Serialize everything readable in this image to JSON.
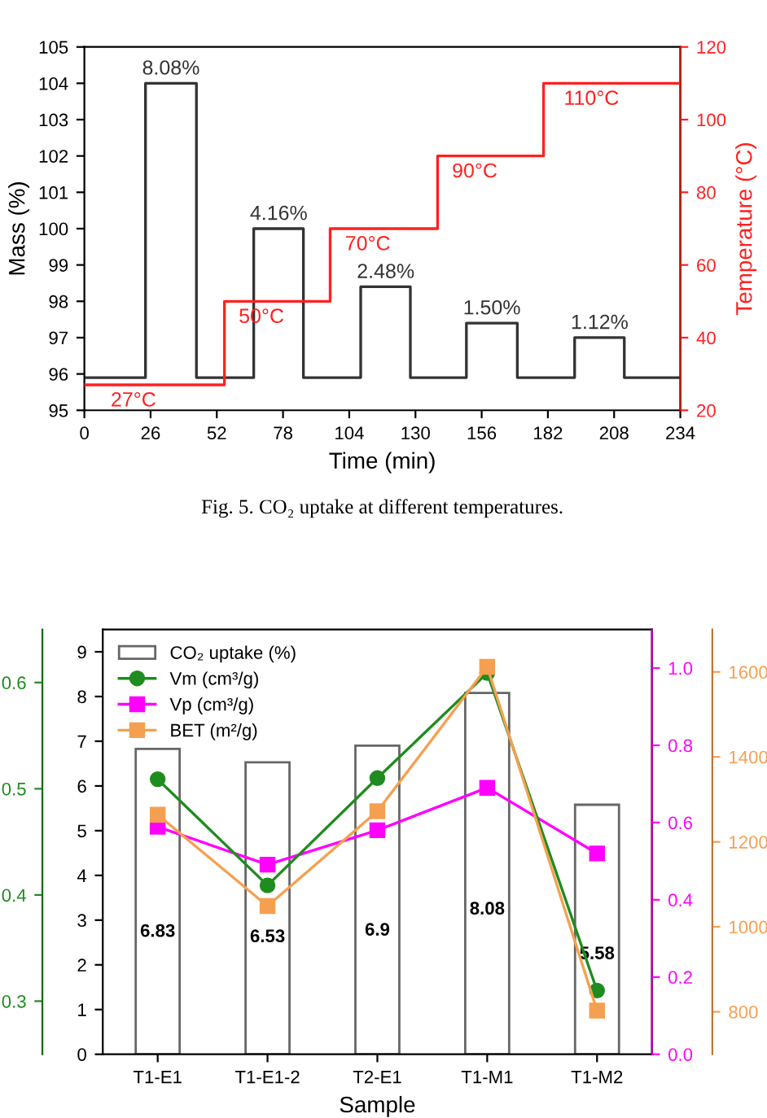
{
  "chart_data": [
    {
      "type": "line",
      "xlabel": "Time (min)",
      "ylabel": "Mass (%)",
      "y2label": "Temperature (°C)",
      "xlim": [
        0,
        234
      ],
      "xticks": [
        0,
        26,
        52,
        78,
        104,
        130,
        156,
        182,
        208,
        234
      ],
      "ylim": [
        95,
        105
      ],
      "yticks": [
        95,
        96,
        97,
        98,
        99,
        100,
        101,
        102,
        103,
        104,
        105
      ],
      "y2lim": [
        20,
        120
      ],
      "y2ticks": [
        20,
        40,
        60,
        80,
        100,
        120
      ],
      "annotations": [
        {
          "text": "8.08%",
          "x": 34,
          "y": 104
        },
        {
          "text": "4.16%",
          "x": 76.3,
          "y": 100.0
        },
        {
          "text": "2.48%",
          "x": 118.3,
          "y": 98.4
        },
        {
          "text": "1.50%",
          "x": 160,
          "y": 97.4
        },
        {
          "text": "1.12%",
          "x": 202.3,
          "y": 97.0
        },
        "Fig. 5. CO₂ uptake at different temperatures."
      ],
      "series": [
        {
          "color": "#333333",
          "x": [
            0,
            24,
            24,
            44,
            44,
            66.5,
            66.5,
            86,
            86,
            108.5,
            108.5,
            128,
            128,
            150,
            150,
            170,
            170,
            192.5,
            192.5,
            212,
            212,
            234
          ],
          "values": [
            95.9,
            95.9,
            104,
            104,
            95.9,
            95.9,
            100.0,
            100.0,
            95.9,
            95.9,
            98.4,
            98.4,
            95.9,
            95.9,
            97.4,
            97.4,
            95.9,
            95.9,
            97.0,
            97.0,
            95.9,
            95.9
          ]
        },
        {
          "type": "step",
          "axis": "y2",
          "color": "#ff2020",
          "x": [
            0,
            55,
            96.5,
            138.7,
            180.3,
            234
          ],
          "values": [
            27,
            50,
            70,
            90,
            110,
            110
          ],
          "value_labels": [
            "27°C",
            "50°C",
            "70°C",
            "90°C",
            "110°C",
            null
          ]
        }
      ]
    },
    {
      "type": "bar",
      "xlabel": "Sample",
      "categories": [
        "T1-E1",
        "T1-E1-2",
        "T2-E1",
        "T1-M1",
        "T1-M2"
      ],
      "ylim": [
        0,
        9.5
      ],
      "yticks": [
        0,
        1,
        2,
        3,
        4,
        5,
        6,
        7,
        8,
        9
      ],
      "y2lim": [
        0,
        1.1
      ],
      "y2ticks": [
        {
          "value": 0,
          "label": "0.0"
        },
        0.2,
        0.4,
        0.6,
        0.8,
        {
          "value": 1,
          "label": "1.0"
        }
      ],
      "y3lim": [
        0.25,
        0.65
      ],
      "y3ticks": [
        0.3,
        0.4,
        0.5,
        0.6
      ],
      "legend": "top left",
      "series": [
        {
          "type": "bar",
          "name": "CO₂ uptake (%)",
          "color": "#ffffff",
          "values": [
            6.83,
            6.53,
            6.9,
            8.08,
            5.58
          ],
          "value_labels": [
            "6.83",
            "6.53",
            "6.9",
            "8.08",
            "5.58"
          ]
        },
        {
          "type": "line",
          "name": "Vm (cm³/g)",
          "axis": "y3",
          "marker": "circle",
          "color": "#1e8c1e",
          "values": [
            0.509,
            0.409,
            0.51,
            0.609,
            0.31
          ]
        },
        {
          "type": "line",
          "name": "Vp (cm³/g)",
          "axis": "y2",
          "marker": "square",
          "color": "#ff00ff",
          "values": [
            0.589,
            0.491,
            0.58,
            0.69,
            0.52
          ]
        }
      ]
    },
    {
      "type": "line",
      "categories": [
        null,
        null,
        null,
        null,
        null
      ],
      "tick_labels": "y",
      "ylim": [
        700,
        1700
      ],
      "yticks": [
        800,
        1000,
        1200,
        1400,
        1600
      ],
      "series": [
        {
          "name": "BET (m²/g)",
          "marker": "square",
          "color": "#f5a050",
          "values": [
            1264,
            1049,
            1272,
            1612,
            803
          ]
        }
      ]
    }
  ]
}
